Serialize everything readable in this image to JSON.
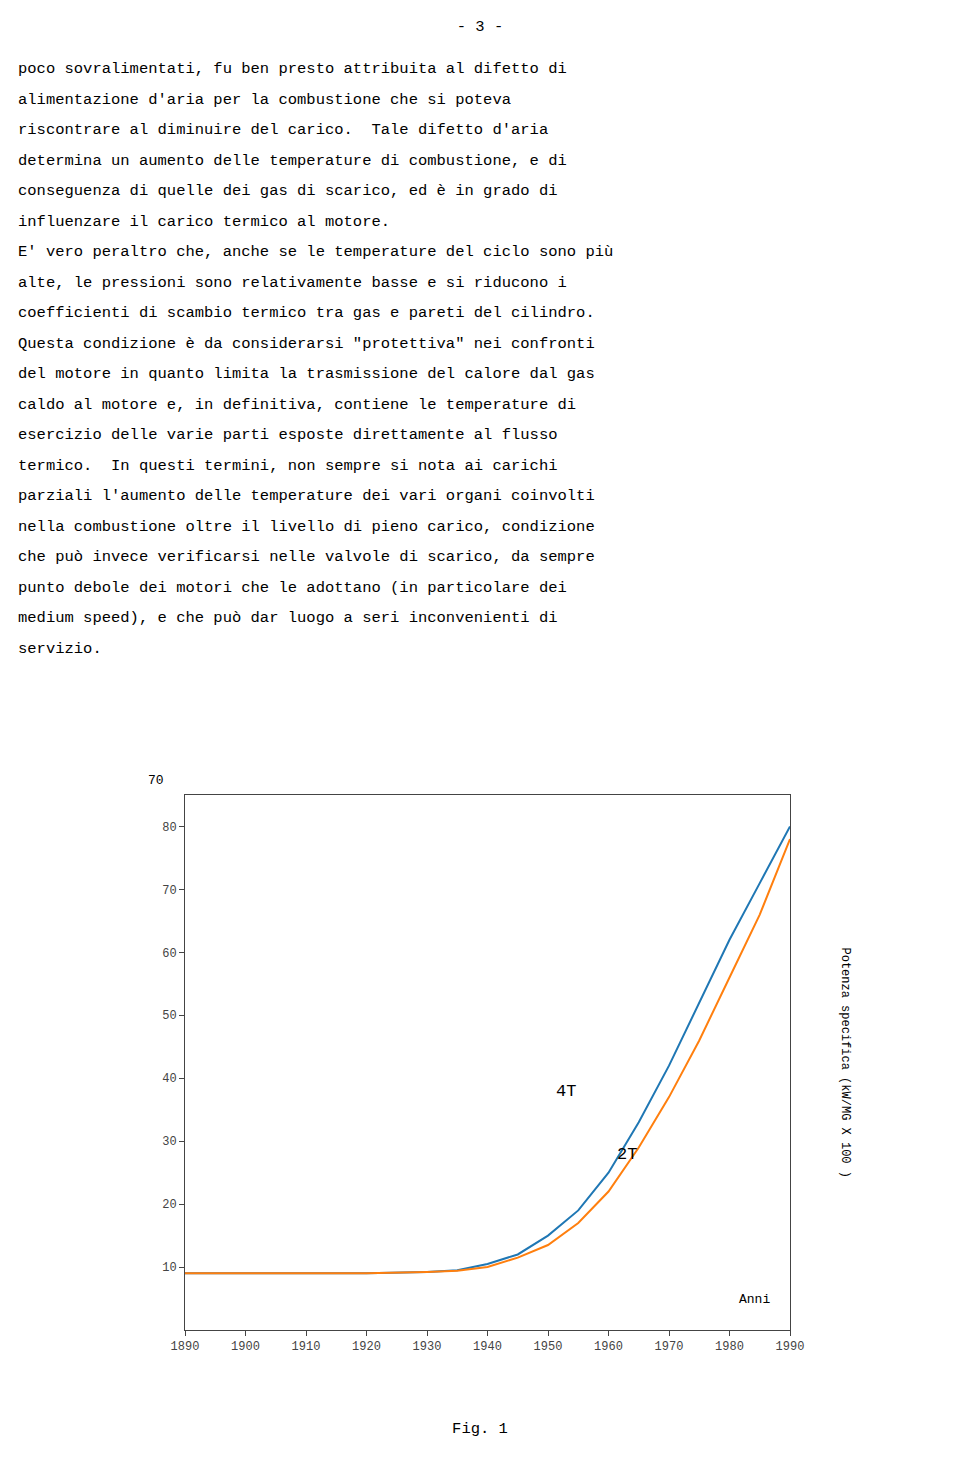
{
  "page_number": "- 3 -",
  "body_text": [
    "poco sovralimentati, fu ben presto attribuita al difetto di",
    "alimentazione d'aria per la combustione che si poteva",
    "riscontrare al diminuire del carico.  Tale difetto d'aria",
    "determina un aumento delle temperature di combustione, e di",
    "conseguenza di quelle dei gas di scarico, ed è in grado di",
    "influenzare il carico termico al motore.",
    "E' vero peraltro che, anche se le temperature del ciclo sono più",
    "alte, le pressioni sono relativamente basse e si riducono i",
    "coefficienti di scambio termico tra gas e pareti del cilindro.",
    "Questa condizione è da considerarsi \"protettiva\" nei confronti",
    "del motore in quanto limita la trasmissione del calore dal gas",
    "caldo al motore e, in definitiva, contiene le temperature di",
    "esercizio delle varie parti esposte direttamente al flusso",
    "termico.  In questi termini, non sempre si nota ai carichi",
    "parziali l'aumento delle temperature dei vari organi coinvolti",
    "nella combustione oltre il livello di pieno carico, condizione",
    "che può invece verificarsi nelle valvole di scarico, da sempre",
    "punto debole dei motori che le adottano (in particolare dei",
    "medium speed), e che può dar luogo a seri inconvenienti di",
    "servizio."
  ],
  "caption": "Fig. 1",
  "chart_data": {
    "type": "line",
    "x": [
      1890,
      1900,
      1910,
      1920,
      1930,
      1935,
      1940,
      1945,
      1950,
      1955,
      1960,
      1965,
      1970,
      1975,
      1980,
      1985,
      1990
    ],
    "series": [
      {
        "values": [
          9.0,
          9.0,
          9.0,
          9.0,
          9.2,
          9.5,
          10.5,
          12.0,
          15.0,
          19.0,
          25.0,
          33.0,
          42.0,
          52.0,
          62.0,
          71.0,
          80.0
        ]
      },
      {
        "values": [
          9.0,
          9.0,
          9.0,
          9.0,
          9.2,
          9.4,
          10.0,
          11.5,
          13.5,
          17.0,
          22.0,
          29.0,
          37.0,
          46.0,
          56.0,
          66.0,
          78.0
        ]
      }
    ],
    "xlabel": "Anni",
    "ylabel": "Potenza specifica (kW/MG X 100 )",
    "xlim": [
      1890,
      1990
    ],
    "ylim": [
      0,
      85
    ],
    "xticks": [
      1890,
      1900,
      1910,
      1920,
      1930,
      1940,
      1950,
      1960,
      1970,
      1980,
      1990
    ],
    "yticks": [
      10,
      20,
      30,
      40,
      50,
      60,
      70,
      80
    ],
    "annotations": [
      {
        "text": "4T",
        "x": 1951,
        "y": 36
      },
      {
        "text": "2T",
        "x": 1961,
        "y": 26
      },
      {
        "text": "70"
      }
    ],
    "grid": false
  }
}
